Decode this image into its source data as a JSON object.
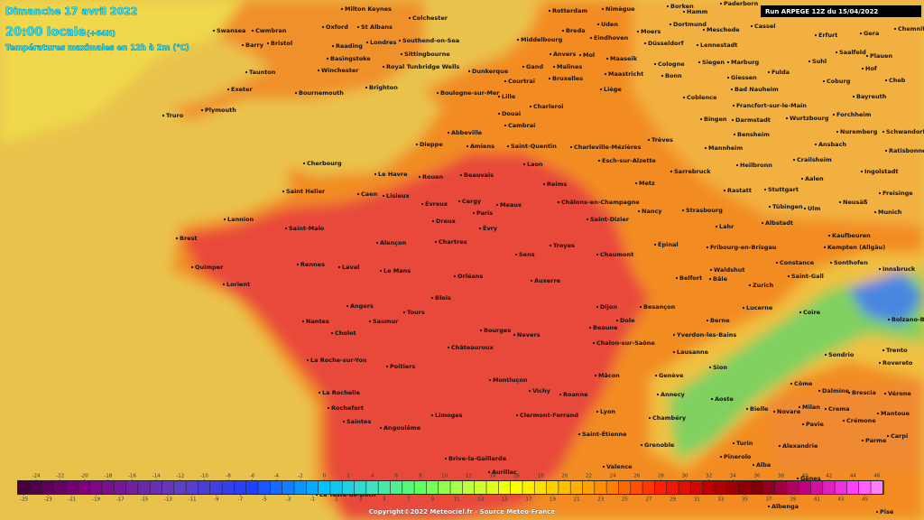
{
  "header": {
    "date": "Dimanche 17 avril 2022",
    "time": "20:00 locale",
    "lead": "(+64H)",
    "subtitle": "Températures maximales en 12h à 2m (°C)"
  },
  "run": "Run ARPEGE 12Z du 15/04/2022",
  "credit": "Copyright©2022 Meteociel.fr - Source Meteo-France",
  "colorbar": {
    "top_ticks": [
      -24,
      -22,
      -20,
      -18,
      -16,
      -14,
      -12,
      -10,
      -8,
      -6,
      -4,
      -2,
      0,
      2,
      4,
      6,
      8,
      10,
      12,
      14,
      16,
      18,
      20,
      22,
      24,
      26,
      28,
      30,
      32,
      34,
      36,
      38,
      40,
      42,
      44,
      46
    ],
    "bottom_ticks": [
      -25,
      -23,
      -21,
      -19,
      -17,
      -15,
      -13,
      -11,
      -9,
      -7,
      -5,
      -3,
      -1,
      1,
      3,
      5,
      7,
      9,
      11,
      13,
      15,
      17,
      19,
      21,
      23,
      25,
      27,
      29,
      31,
      33,
      35,
      37,
      39,
      41,
      43,
      45
    ]
  },
  "cities": [
    "Milton Keynes",
    "Colchester",
    "Swansea",
    "Cwmbran",
    "Oxford",
    "St Albans",
    "Southend-on-Sea",
    "Barry",
    "Bristol",
    "Reading",
    "Londres",
    "Sittingbourne",
    "Basingstoke",
    "Taunton",
    "Winchester",
    "Royal Tunbridge Wells",
    "Exeter",
    "Bournemouth",
    "Brighton",
    "Truro",
    "Plymouth",
    "Rotterdam",
    "Nimègue",
    "Borken",
    "Hamm",
    "Paderborn",
    "Uden",
    "Breda",
    "Dortmund",
    "Meschede",
    "Cassel",
    "Middelbourg",
    "Eindhoven",
    "Moers",
    "Düsseldorf",
    "Lennestadt",
    "Erfurt",
    "Gera",
    "Chemnitz",
    "Anvers",
    "Mol",
    "Maaseik",
    "Saalfeld",
    "Plauen",
    "Gand",
    "Malines",
    "Cologne",
    "Siegen",
    "Marburg",
    "Suhl",
    "Hof",
    "Dunkerque",
    "Courtrai",
    "Bruxelles",
    "Maastricht",
    "Bonn",
    "Giessen",
    "Fulda",
    "Coburg",
    "Cheb",
    "Boulogne-sur-Mer",
    "Lille",
    "Liège",
    "Bad Nauheim",
    "Coblence",
    "Bayreuth",
    "Douai",
    "Charleroi",
    "Francfort-sur-le-Main",
    "Abbeville",
    "Cambrai",
    "Bingen",
    "Darmstadt",
    "Wurtzbourg",
    "Forchheim",
    "Schwandorf",
    "Bensheim",
    "Nuremberg",
    "Dieppe",
    "Amiens",
    "Saint-Quentin",
    "Charleville-Mézières",
    "Trèves",
    "Mannheim",
    "Ansbach",
    "Ratisbonne",
    "Esch-sur-Alzette",
    "Crailsheim",
    "Heilbronn",
    "Cherbourg",
    "Laon",
    "Sarrebruck",
    "Ingolstadt",
    "Le Havre",
    "Rouen",
    "Beauvais",
    "Reims",
    "Metz",
    "Aalen",
    "Saint Helier",
    "Caen",
    "Lisieux",
    "Cergy",
    "Évreux",
    "Meaux",
    "Châlons-en-Champagne",
    "Rastatt",
    "Stuttgart",
    "Freisinge",
    "Neusäß",
    "Paris",
    "Nancy",
    "Tübingen",
    "Ulm",
    "Munich",
    "Lannion",
    "Dreux",
    "Saint-Dizier",
    "Strasbourg",
    "Lahr",
    "Albstadt",
    "Saint-Malo",
    "Évry",
    "Brest",
    "Chartres",
    "Troyes",
    "Épinal",
    "Fribourg-en-Brisgau",
    "Kaufbeuren",
    "Alençon",
    "Kempten (Allgäu)",
    "Chaumont",
    "Sens",
    "Constance",
    "Sonthofen",
    "Innsbruck",
    "Quimper",
    "Rennes",
    "Laval",
    "Le Mans",
    "Orléans",
    "Waldshut",
    "Saint-Gall",
    "Belfort",
    "Bâle",
    "Zurich",
    "Lorient",
    "Auxerre",
    "Angers",
    "Tours",
    "Blois",
    "Dijon",
    "Besançon",
    "Lucerne",
    "Coire",
    "Saumur",
    "Nantes",
    "Beaune",
    "Dole",
    "Berne",
    "Bolzano-Bo",
    "Cholet",
    "Bourges",
    "Nevers",
    "Chalon-sur-Saône",
    "Yverdon-les-Bains",
    "Châteauroux",
    "Lausanne",
    "Sondrio",
    "Trento",
    "La Roche-sur-Yon",
    "Rovereto",
    "Poitiers",
    "Sion",
    "Genève",
    "Mâcon",
    "Montluçon",
    "Côme",
    "Dalmine",
    "Brescia",
    "Vérone",
    "La Rochelle",
    "Vichy",
    "Roanne",
    "Annecy",
    "Aoste",
    "Milan",
    "Crema",
    "Rochefort",
    "Bielle",
    "Novare",
    "Lyon",
    "Clermont-Ferrand",
    "Limoges",
    "Mantoue",
    "Saintes",
    "Chambéry",
    "Pavie",
    "Crémone",
    "Angoulême",
    "Saint-Étienne",
    "Turin",
    "Parme",
    "Carpi",
    "Grenoble",
    "Alexandrie",
    "Brive-la-Gaillarde",
    "Pinerolo",
    "Valence",
    "Aurillac",
    "Alba",
    "Gênes",
    "Albenga",
    "La Teste-de-Buch",
    "Pise"
  ]
}
